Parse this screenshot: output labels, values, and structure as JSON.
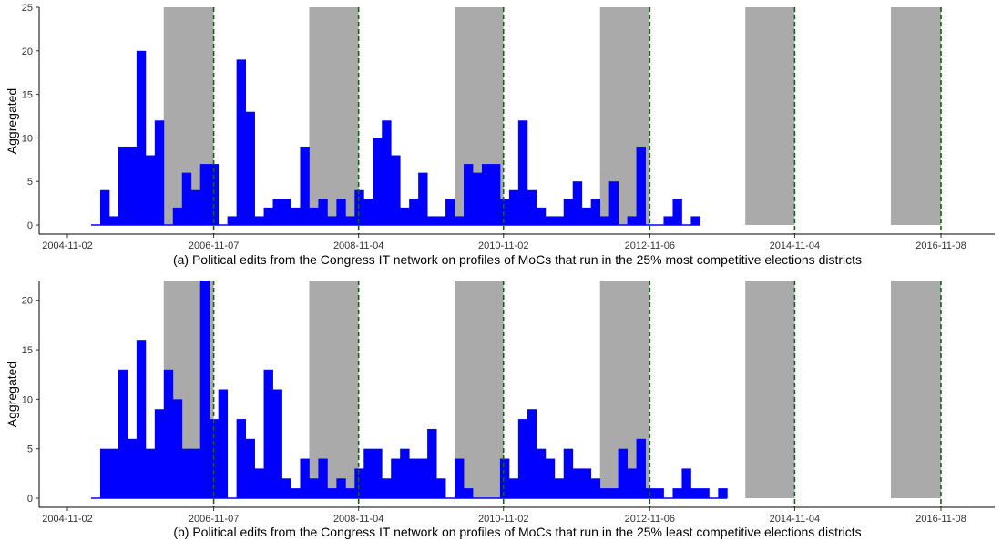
{
  "chart_data": [
    {
      "type": "bar",
      "panel": "a",
      "xlabel": "(a) Political edits from the Congress IT network on profiles of MoCs that run in the 25% most competitive elections districts",
      "ylabel": "Aggregated",
      "ylim": [
        0,
        25
      ],
      "yticks": [
        0,
        5,
        10,
        15,
        20,
        25
      ],
      "xticks": [
        "2004-11-02",
        "2006-11-07",
        "2008-11-04",
        "2010-11-02",
        "2012-11-06",
        "2014-11-04",
        "2016-11-08"
      ],
      "election_dates": [
        "2006-11-07",
        "2008-11-04",
        "2010-11-02",
        "2012-11-06",
        "2014-11-04",
        "2016-11-08"
      ],
      "shaded_periods": [
        [
          "2006-03-01",
          "2006-11-07"
        ],
        [
          "2008-03-01",
          "2008-11-04"
        ],
        [
          "2010-03-01",
          "2010-11-02"
        ],
        [
          "2012-03-01",
          "2012-11-06"
        ],
        [
          "2014-03-01",
          "2014-11-04"
        ],
        [
          "2016-03-01",
          "2016-11-08"
        ]
      ],
      "bin_start": "2005-03-01",
      "bin_months": 1.5,
      "values": [
        0,
        4,
        1,
        9,
        9,
        20,
        8,
        12,
        0,
        2,
        6,
        4,
        7,
        7,
        0,
        1,
        19,
        13,
        1,
        2,
        3,
        3,
        2,
        9,
        2,
        3,
        1,
        3,
        1,
        4,
        3,
        10,
        12,
        8,
        2,
        3,
        6,
        1,
        1,
        3,
        1,
        7,
        6,
        7,
        7,
        3,
        4,
        12,
        4,
        2,
        1,
        1,
        3,
        5,
        2,
        3,
        1,
        5,
        0,
        1,
        9,
        0,
        0,
        1,
        3,
        0,
        1
      ],
      "grid": false
    },
    {
      "type": "bar",
      "panel": "b",
      "xlabel": "(b) Political edits from the Congress IT network on profiles of MoCs that run in the 25% least competitive elections districts",
      "ylabel": "Aggregated",
      "ylim": [
        0,
        22
      ],
      "yticks": [
        0,
        5,
        10,
        15,
        20
      ],
      "xticks": [
        "2004-11-02",
        "2006-11-07",
        "2008-11-04",
        "2010-11-02",
        "2012-11-06",
        "2014-11-04",
        "2016-11-08"
      ],
      "election_dates": [
        "2006-11-07",
        "2008-11-04",
        "2010-11-02",
        "2012-11-06",
        "2014-11-04",
        "2016-11-08"
      ],
      "shaded_periods": [
        [
          "2006-03-01",
          "2006-11-07"
        ],
        [
          "2008-03-01",
          "2008-11-04"
        ],
        [
          "2010-03-01",
          "2010-11-02"
        ],
        [
          "2012-03-01",
          "2012-11-06"
        ],
        [
          "2014-03-01",
          "2014-11-04"
        ],
        [
          "2016-03-01",
          "2016-11-08"
        ]
      ],
      "bin_start": "2005-03-01",
      "bin_months": 1.5,
      "values": [
        0,
        5,
        5,
        13,
        6,
        16,
        5,
        9,
        13,
        10,
        5,
        5,
        22,
        8,
        11,
        0,
        8,
        6,
        3,
        13,
        11,
        2,
        1,
        4,
        2,
        4,
        1,
        2,
        1,
        3,
        5,
        5,
        2,
        4,
        5,
        4,
        4,
        7,
        2,
        0,
        4,
        1,
        0,
        0,
        0,
        4,
        2,
        8,
        9,
        5,
        4,
        2,
        5,
        3,
        3,
        2,
        1,
        1,
        5,
        3,
        6,
        1,
        1,
        0,
        1,
        3,
        1,
        1,
        0,
        1
      ],
      "grid": false
    }
  ],
  "style": {
    "bar_color": "#0000ff",
    "shade_color": "#aaaaaa",
    "election_line_color": "#1a5e1a",
    "axis_color": "#000000"
  }
}
